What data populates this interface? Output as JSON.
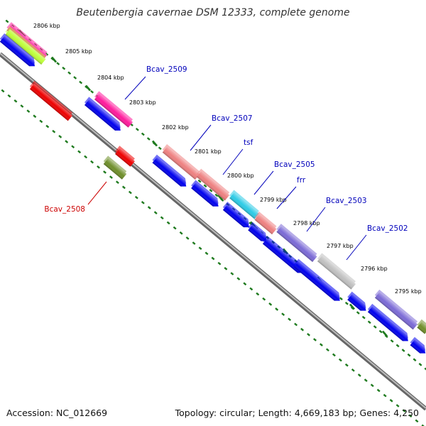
{
  "title": "Beutenbergia cavernae DSM 12333, complete genome",
  "footer": {
    "accession": "Accession: NC_012669",
    "topology": "Topology: circular; Length: 4,669,183 bp; Genes: 4,250"
  },
  "colors": {
    "backbone": "#808080",
    "tick": "#1e7a1e",
    "cds_forward": "#0000ee",
    "cds_reverse": "#ee0000",
    "label_forward": "#0000bb",
    "label_reverse": "#cc0000"
  },
  "kbp_labels": [
    "2806 kbp",
    "2805 kbp",
    "2804 kbp",
    "2803 kbp",
    "2802 kbp",
    "2801 kbp",
    "2800 kbp",
    "2799 kbp",
    "2798 kbp",
    "2797 kbp",
    "2796 kbp",
    "2795 kbp"
  ],
  "gene_labels": [
    "Bcav_2509",
    "Bcav_2507",
    "tsf",
    "Bcav_2505",
    "frr",
    "Bcav_2503",
    "Bcav_2502",
    "Bcav_2508"
  ]
}
